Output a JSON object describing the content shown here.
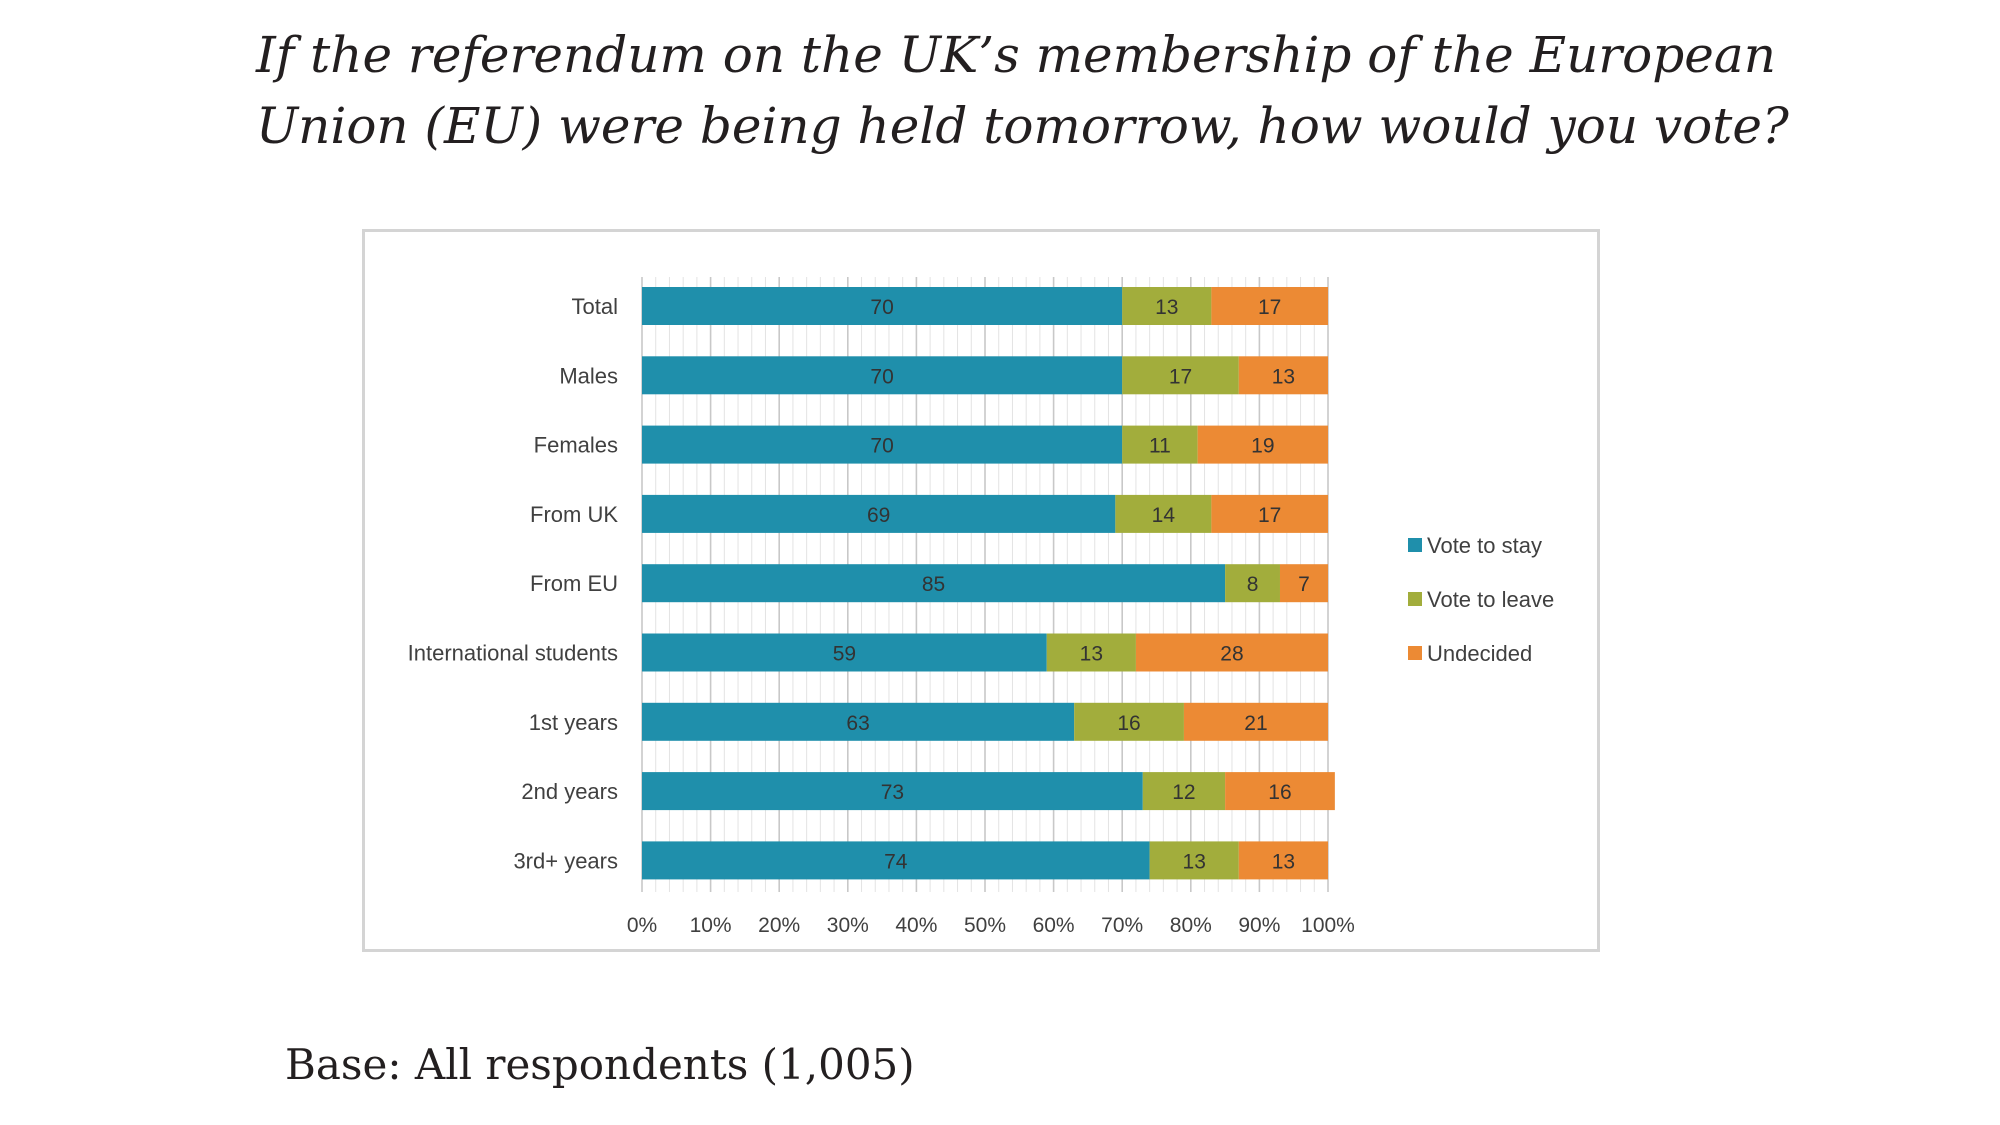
{
  "question": "If the referendum on the UK’s membership of the European Union (EU) were being held tomorrow, how would you vote?",
  "base_note": "Base: All respondents (1,005)",
  "chart_data": {
    "type": "bar",
    "orientation": "horizontal",
    "stacked": true,
    "categories": [
      "Total",
      "Males",
      "Females",
      "From UK",
      "From EU",
      "International students",
      "1st years",
      "2nd years",
      "3rd+ years"
    ],
    "series": [
      {
        "name": "Vote to stay",
        "color": "#1f8fab",
        "values": [
          70,
          70,
          70,
          69,
          85,
          59,
          63,
          73,
          74
        ]
      },
      {
        "name": "Vote to leave",
        "color": "#a2ad3c",
        "values": [
          13,
          17,
          11,
          14,
          8,
          13,
          16,
          12,
          13
        ]
      },
      {
        "name": "Undecided",
        "color": "#ec8a34",
        "values": [
          17,
          13,
          19,
          17,
          7,
          28,
          21,
          16,
          13
        ]
      }
    ],
    "x_ticks": [
      "0%",
      "10%",
      "20%",
      "30%",
      "40%",
      "50%",
      "60%",
      "70%",
      "80%",
      "90%",
      "100%"
    ],
    "xlim": [
      0,
      100
    ],
    "grid": true,
    "data_labels": true,
    "legend_position": "right"
  }
}
